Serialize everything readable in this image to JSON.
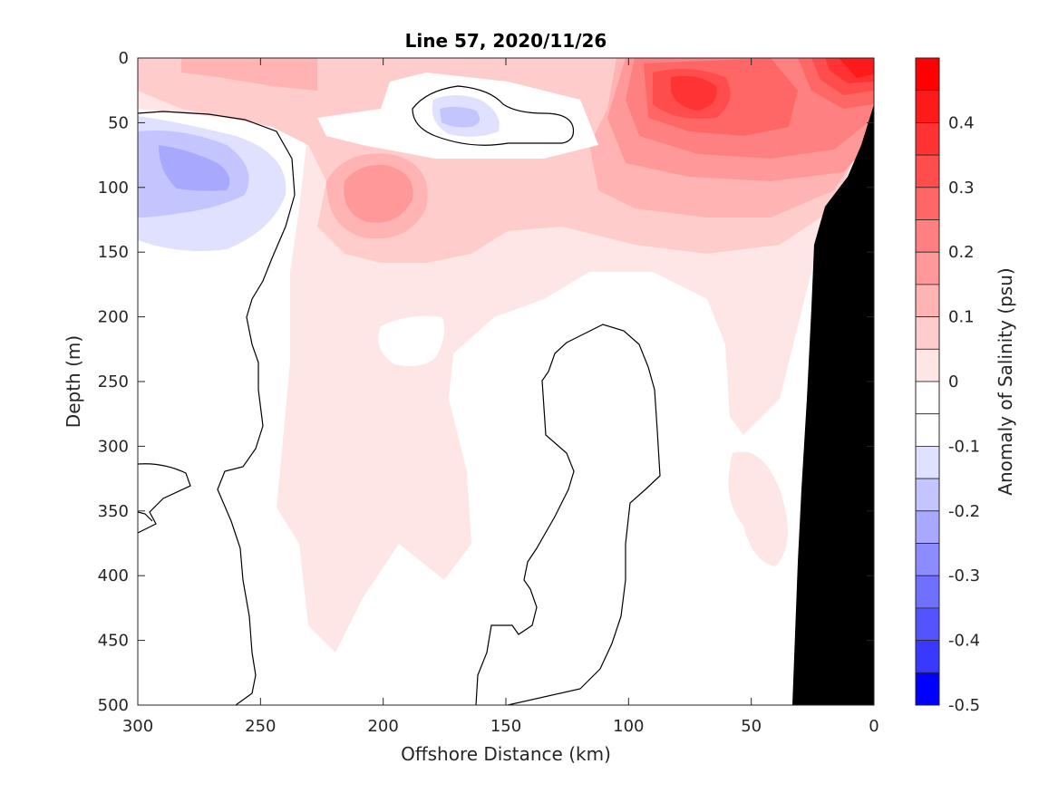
{
  "chart_data": {
    "type": "heatmap",
    "title": "Line 57, 2020/11/26",
    "xlabel": "Offshore Distance (km)",
    "ylabel": "Depth (m)",
    "xlim": [
      300,
      0
    ],
    "ylim": [
      0,
      500
    ],
    "x_reversed": true,
    "y_reversed": true,
    "x_ticks": [
      300,
      250,
      200,
      150,
      100,
      50,
      0
    ],
    "y_ticks": [
      0,
      50,
      100,
      150,
      200,
      250,
      300,
      350,
      400,
      450,
      500
    ],
    "colorbar": {
      "label": "Anomaly of Salinity (psu)",
      "range": [
        -0.5,
        0.5
      ],
      "ticks": [
        0.4,
        0.3,
        0.2,
        0.1,
        0,
        -0.1,
        -0.2,
        -0.3,
        -0.4,
        -0.5
      ],
      "levels": [
        {
          "from": 0.45,
          "to": 0.5,
          "color": "#ff0000"
        },
        {
          "from": 0.4,
          "to": 0.45,
          "color": "#ff1a1a"
        },
        {
          "from": 0.35,
          "to": 0.4,
          "color": "#ff3333"
        },
        {
          "from": 0.3,
          "to": 0.35,
          "color": "#ff4d4d"
        },
        {
          "from": 0.25,
          "to": 0.3,
          "color": "#ff6666"
        },
        {
          "from": 0.2,
          "to": 0.25,
          "color": "#ff8080"
        },
        {
          "from": 0.15,
          "to": 0.2,
          "color": "#ff9999"
        },
        {
          "from": 0.1,
          "to": 0.15,
          "color": "#ffb3b3"
        },
        {
          "from": 0.05,
          "to": 0.1,
          "color": "#ffcccc"
        },
        {
          "from": 0.0,
          "to": 0.05,
          "color": "#ffe6e6"
        },
        {
          "from": -0.05,
          "to": 0.0,
          "color": "#ffffff"
        },
        {
          "from": -0.1,
          "to": -0.05,
          "color": "#ffffff"
        },
        {
          "from": -0.15,
          "to": -0.1,
          "color": "#e0e0ff"
        },
        {
          "from": -0.2,
          "to": -0.15,
          "color": "#c4c4ff"
        },
        {
          "from": -0.25,
          "to": -0.2,
          "color": "#a8a8ff"
        },
        {
          "from": -0.3,
          "to": -0.25,
          "color": "#8c8cff"
        },
        {
          "from": -0.35,
          "to": -0.3,
          "color": "#7070ff"
        },
        {
          "from": -0.4,
          "to": -0.35,
          "color": "#5454ff"
        },
        {
          "from": -0.45,
          "to": -0.4,
          "color": "#3838ff"
        },
        {
          "from": -0.5,
          "to": -0.45,
          "color": "#0000ff"
        }
      ]
    },
    "seafloor_color": "#000000",
    "contour_level": 0,
    "colors": {
      "anom_p005": "#ffe6e6",
      "anom_p01": "#ffcccc",
      "anom_p015": "#ffb3b3",
      "anom_p02": "#ff9999",
      "anom_p025": "#ff8080",
      "anom_p03": "#ff6666",
      "anom_p035": "#ff4d4d",
      "anom_p04": "#ff3333",
      "anom_p045": "#ff1a1a",
      "anom_n01": "#e0e0ff",
      "anom_n015": "#c4c4ff",
      "anom_n02": "#a8a8ff"
    }
  }
}
